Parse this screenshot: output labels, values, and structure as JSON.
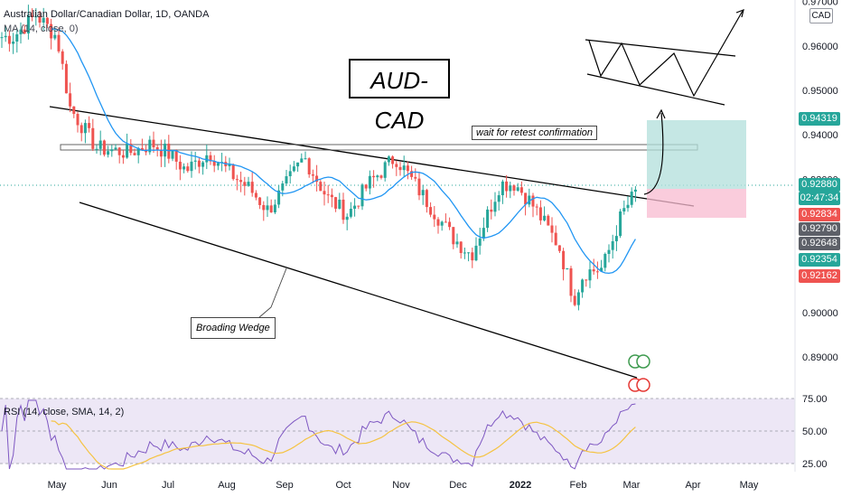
{
  "header": {
    "symbol_line": "Australian Dollar/Canadian Dollar, 1D, OANDA",
    "ma_line": "MA (14, close, 0)"
  },
  "currency_badge": "CAD",
  "title_box": "AUD-CAD",
  "annotations": {
    "retest": "wait for retest confirmation",
    "wedge": "Broading Wedge"
  },
  "rsi": {
    "label": "RSI (14, close, SMA, 14, 2)",
    "levels": [
      "75.00",
      "50.00",
      "25.00"
    ]
  },
  "price_tags": [
    {
      "value": "0.94319",
      "color": "#26a69a"
    },
    {
      "value": "0.92880",
      "color": "#26a69a"
    },
    {
      "value": "02:47:34",
      "color": "#26a69a"
    },
    {
      "value": "0.92834",
      "color": "#ef5350"
    },
    {
      "value": "0.92790",
      "color": "#5d6068"
    },
    {
      "value": "0.92648",
      "color": "#5d6068"
    },
    {
      "value": "0.92354",
      "color": "#26a69a"
    },
    {
      "value": "0.92162",
      "color": "#ef5350"
    }
  ],
  "colors": {
    "up": "#26a69a",
    "down": "#ef5350",
    "ma": "#2196f3",
    "rsi": "#7e57c2",
    "rsi_sma": "#f5c342",
    "rsi_band": "#ede7f6"
  },
  "chart_data": {
    "type": "candlestick",
    "y_ticks": [
      "0.97000",
      "0.96000",
      "0.95000",
      "0.94000",
      "0.93000",
      "0.90000",
      "0.89000"
    ],
    "y_range": [
      0.883,
      0.976
    ],
    "x_labels": [
      "May",
      "Jun",
      "Jul",
      "Aug",
      "Sep",
      "Oct",
      "Nov",
      "Dec",
      "2022",
      "Feb",
      "Mar",
      "Apr",
      "May"
    ],
    "price_path": [
      {
        "date": "2021-04-08",
        "close": 0.962
      },
      {
        "date": "2021-04-20",
        "close": 0.967
      },
      {
        "date": "2021-05-01",
        "close": 0.962
      },
      {
        "date": "2021-05-08",
        "close": 0.946
      },
      {
        "date": "2021-05-22",
        "close": 0.937
      },
      {
        "date": "2021-06-08",
        "close": 0.936
      },
      {
        "date": "2021-06-20",
        "close": 0.938
      },
      {
        "date": "2021-06-28",
        "close": 0.936
      },
      {
        "date": "2021-07-08",
        "close": 0.932
      },
      {
        "date": "2021-07-20",
        "close": 0.936
      },
      {
        "date": "2021-08-01",
        "close": 0.931
      },
      {
        "date": "2021-08-10",
        "close": 0.928
      },
      {
        "date": "2021-08-20",
        "close": 0.923
      },
      {
        "date": "2021-08-30",
        "close": 0.929
      },
      {
        "date": "2021-09-08",
        "close": 0.935
      },
      {
        "date": "2021-09-20",
        "close": 0.926
      },
      {
        "date": "2021-10-01",
        "close": 0.922
      },
      {
        "date": "2021-10-12",
        "close": 0.929
      },
      {
        "date": "2021-10-26",
        "close": 0.935
      },
      {
        "date": "2021-11-10",
        "close": 0.926
      },
      {
        "date": "2021-11-25",
        "close": 0.917
      },
      {
        "date": "2021-12-05",
        "close": 0.913
      },
      {
        "date": "2021-12-20",
        "close": 0.929
      },
      {
        "date": "2021-12-28",
        "close": 0.929
      },
      {
        "date": "2022-01-05",
        "close": 0.925
      },
      {
        "date": "2022-01-20",
        "close": 0.915
      },
      {
        "date": "2022-01-28",
        "close": 0.903
      },
      {
        "date": "2022-02-02",
        "close": 0.909
      },
      {
        "date": "2022-02-12",
        "close": 0.91
      },
      {
        "date": "2022-02-22",
        "close": 0.922
      },
      {
        "date": "2022-03-04",
        "close": 0.9288
      }
    ],
    "rsi_levels": [
      75,
      50,
      25
    ]
  }
}
